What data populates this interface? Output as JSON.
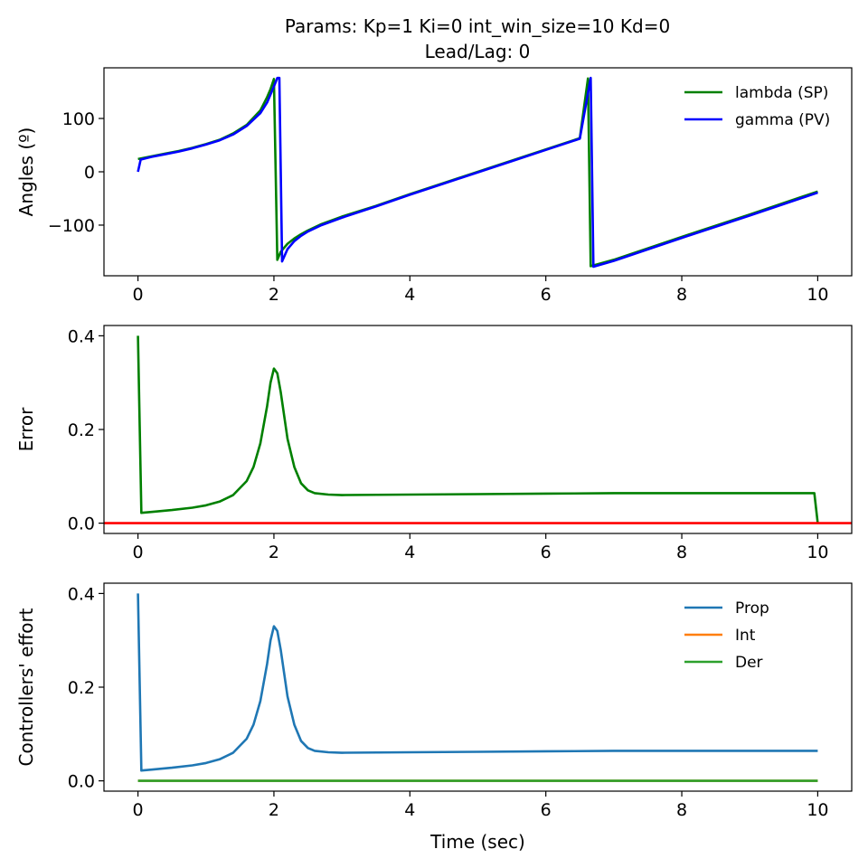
{
  "figure": {
    "title_line1": "Params: Kp=1 Ki=0 int_win_size=10 Kd=0",
    "title_line2": "Lead/Lag: 0"
  },
  "colors": {
    "sp": "#008000",
    "pv": "#0000ff",
    "zero_line": "#ff0000",
    "prop": "#1f77b4",
    "int": "#ff7f0e",
    "der": "#2ca02c"
  },
  "chart_data": [
    {
      "type": "line",
      "ylabel": "Angles (º)",
      "xlabel": "",
      "xlim": [
        -0.5,
        10.5
      ],
      "ylim": [
        -195,
        195
      ],
      "xticks": [
        0,
        2,
        4,
        6,
        8,
        10
      ],
      "xtick_labels": [
        "0",
        "2",
        "4",
        "6",
        "8",
        "10"
      ],
      "yticks": [
        -100,
        0,
        100
      ],
      "ytick_labels": [
        "−100",
        "0",
        "100"
      ],
      "legend": "top-right",
      "series": [
        {
          "name": "lambda (SP)",
          "color": "#008000",
          "x": [
            0,
            0.2,
            0.4,
            0.6,
            0.8,
            1.0,
            1.2,
            1.4,
            1.6,
            1.8,
            1.9,
            1.95,
            2.0,
            2.05,
            2.1,
            2.2,
            2.3,
            2.4,
            2.5,
            2.7,
            3.0,
            3.5,
            4.0,
            4.5,
            5.0,
            5.5,
            6.0,
            6.5,
            6.62,
            6.66,
            7.0,
            8.0,
            9.0,
            10.0
          ],
          "y": [
            24,
            29,
            34,
            39,
            45,
            52,
            60,
            72,
            88,
            115,
            140,
            155,
            174,
            -165,
            -150,
            -135,
            -125,
            -117,
            -110,
            -98,
            -84,
            -64,
            -42,
            -21,
            0,
            21,
            42,
            63,
            175,
            -177,
            -165,
            -122,
            -80,
            -37
          ]
        },
        {
          "name": "gamma (PV)",
          "color": "#0000ff",
          "x": [
            0,
            0.04,
            0.2,
            0.4,
            0.6,
            0.8,
            1.0,
            1.2,
            1.4,
            1.6,
            1.8,
            1.9,
            1.95,
            2.0,
            2.05,
            2.08,
            2.12,
            2.2,
            2.3,
            2.4,
            2.5,
            2.7,
            3.0,
            3.5,
            4.0,
            4.5,
            5.0,
            5.5,
            6.0,
            6.5,
            6.66,
            6.7,
            7.0,
            8.0,
            9.0,
            10.0
          ],
          "y": [
            0,
            23,
            28,
            33,
            38,
            44,
            51,
            59,
            70,
            86,
            110,
            130,
            145,
            160,
            176,
            176,
            -168,
            -145,
            -130,
            -120,
            -112,
            -100,
            -86,
            -65,
            -43,
            -22,
            -1,
            20,
            41,
            62,
            176,
            -178,
            -167,
            -124,
            -82,
            -39
          ]
        }
      ]
    },
    {
      "type": "line",
      "ylabel": "Error",
      "xlabel": "",
      "xlim": [
        -0.5,
        10.5
      ],
      "ylim": [
        -0.022,
        0.422
      ],
      "xticks": [
        0,
        2,
        4,
        6,
        8,
        10
      ],
      "xtick_labels": [
        "0",
        "2",
        "4",
        "6",
        "8",
        "10"
      ],
      "yticks": [
        0.0,
        0.2,
        0.4
      ],
      "ytick_labels": [
        "0.0",
        "0.2",
        "0.4"
      ],
      "series": [
        {
          "color": "#008000",
          "x": [
            0,
            0.05,
            0.2,
            0.5,
            0.8,
            1.0,
            1.2,
            1.4,
            1.6,
            1.7,
            1.8,
            1.9,
            1.95,
            2.0,
            2.05,
            2.1,
            2.15,
            2.2,
            2.3,
            2.4,
            2.5,
            2.6,
            2.8,
            3.0,
            4.0,
            5.0,
            6.0,
            7.0,
            8.0,
            9.0,
            9.95,
            10.0
          ],
          "y": [
            0.4,
            0.022,
            0.024,
            0.028,
            0.033,
            0.038,
            0.046,
            0.06,
            0.09,
            0.12,
            0.17,
            0.25,
            0.3,
            0.33,
            0.32,
            0.28,
            0.23,
            0.18,
            0.12,
            0.085,
            0.07,
            0.064,
            0.061,
            0.06,
            0.061,
            0.062,
            0.063,
            0.064,
            0.064,
            0.064,
            0.064,
            0.0
          ]
        },
        {
          "color": "#ff0000",
          "x": [
            -0.5,
            10.5
          ],
          "y": [
            0,
            0
          ]
        }
      ]
    },
    {
      "type": "line",
      "ylabel": "Controllers' effort",
      "xlabel": "Time (sec)",
      "xlim": [
        -0.5,
        10.5
      ],
      "ylim": [
        -0.022,
        0.422
      ],
      "xticks": [
        0,
        2,
        4,
        6,
        8,
        10
      ],
      "xtick_labels": [
        "0",
        "2",
        "4",
        "6",
        "8",
        "10"
      ],
      "yticks": [
        0.0,
        0.2,
        0.4
      ],
      "ytick_labels": [
        "0.0",
        "0.2",
        "0.4"
      ],
      "legend": "top-right",
      "series": [
        {
          "name": "Prop",
          "color": "#1f77b4",
          "x": [
            0,
            0.05,
            0.2,
            0.5,
            0.8,
            1.0,
            1.2,
            1.4,
            1.6,
            1.7,
            1.8,
            1.9,
            1.95,
            2.0,
            2.05,
            2.1,
            2.15,
            2.2,
            2.3,
            2.4,
            2.5,
            2.6,
            2.8,
            3.0,
            4.0,
            5.0,
            6.0,
            7.0,
            8.0,
            9.0,
            10.0
          ],
          "y": [
            0.4,
            0.022,
            0.024,
            0.028,
            0.033,
            0.038,
            0.046,
            0.06,
            0.09,
            0.12,
            0.17,
            0.25,
            0.3,
            0.33,
            0.32,
            0.28,
            0.23,
            0.18,
            0.12,
            0.085,
            0.07,
            0.064,
            0.061,
            0.06,
            0.061,
            0.062,
            0.063,
            0.064,
            0.064,
            0.064,
            0.064
          ]
        },
        {
          "name": "Int",
          "color": "#ff7f0e",
          "x": [
            0,
            10
          ],
          "y": [
            0,
            0
          ]
        },
        {
          "name": "Der",
          "color": "#2ca02c",
          "x": [
            0,
            10
          ],
          "y": [
            0,
            0
          ]
        }
      ]
    }
  ]
}
